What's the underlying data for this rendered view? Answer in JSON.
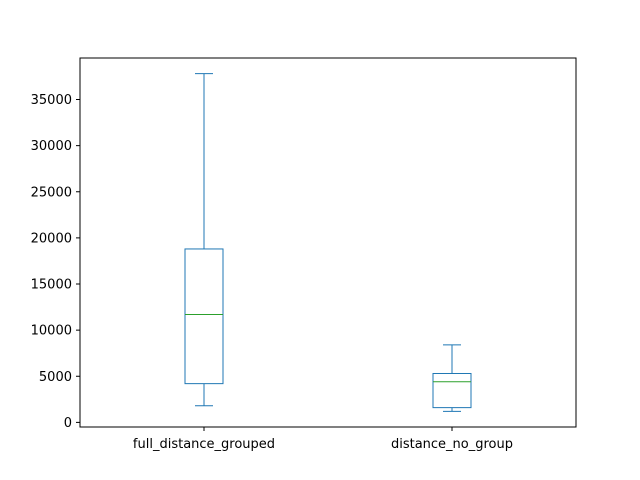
{
  "chart_data": {
    "type": "box",
    "categories": [
      "full_distance_grouped",
      "distance_no_group"
    ],
    "boxes": [
      {
        "name": "full_distance_grouped",
        "whisker_low": 1800,
        "q1": 4200,
        "median": 11700,
        "q3": 18800,
        "whisker_high": 37800
      },
      {
        "name": "distance_no_group",
        "whisker_low": 1200,
        "q1": 1600,
        "median": 4400,
        "q3": 5300,
        "whisker_high": 8400
      }
    ],
    "yticks": [
      0,
      5000,
      10000,
      15000,
      20000,
      25000,
      30000,
      35000
    ],
    "ylim": [
      -500,
      39500
    ],
    "title": "",
    "xlabel": "",
    "ylabel": "",
    "grid": false,
    "colors": {
      "box": "#1f77b4",
      "median": "#2ca02c",
      "axis": "#000000"
    }
  }
}
